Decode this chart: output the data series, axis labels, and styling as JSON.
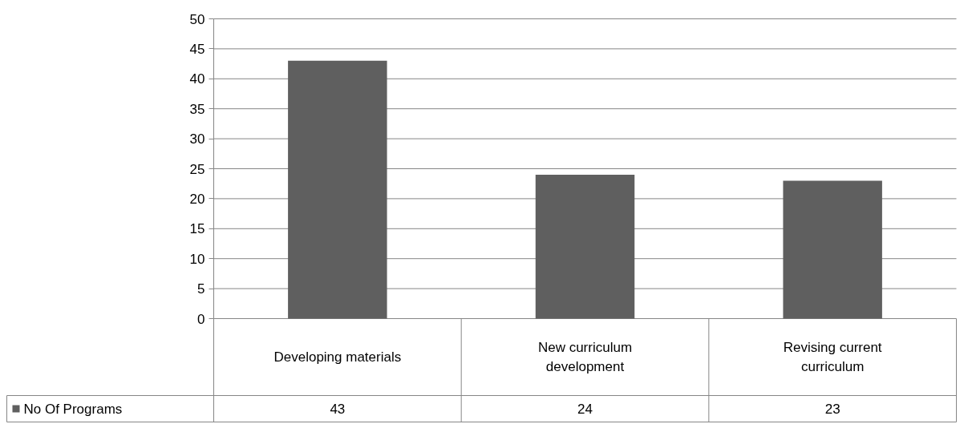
{
  "chart_data": {
    "type": "bar",
    "categories": [
      "Developing materials",
      "New curriculum development",
      "Revising current curriculum"
    ],
    "series": [
      {
        "name": "No Of Programs",
        "color": "#5f5f5f",
        "values": [
          43,
          24,
          23
        ]
      }
    ],
    "ylim": [
      0,
      50
    ],
    "yticks": [
      0,
      5,
      10,
      15,
      20,
      25,
      30,
      35,
      40,
      45,
      50
    ],
    "grid": "y",
    "legend": "bottom left",
    "data_labels": true
  }
}
